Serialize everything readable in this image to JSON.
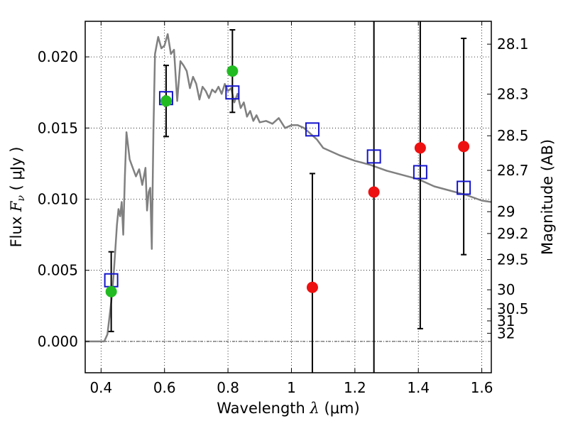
{
  "chart_data": {
    "type": "scatter",
    "xlabel": {
      "prefix": "Wavelength  ",
      "symbol": "λ",
      "unit": " (μm)"
    },
    "ylabel": {
      "prefix": "Flux  ",
      "symbol": "F",
      "subscript": "ν",
      "unit": "  ( μJy )"
    },
    "y2label": "Magnitude (AB)",
    "xlim": [
      0.35,
      1.63
    ],
    "ylim": [
      -0.0022,
      0.0225
    ],
    "x_ticks": [
      {
        "value": 0.4,
        "label": "0.4"
      },
      {
        "value": 0.6,
        "label": "0.6"
      },
      {
        "value": 0.8,
        "label": "0.8"
      },
      {
        "value": 1.0,
        "label": "1"
      },
      {
        "value": 1.2,
        "label": "1.2"
      },
      {
        "value": 1.4,
        "label": "1.4"
      },
      {
        "value": 1.6,
        "label": "1.6"
      }
    ],
    "y_ticks": [
      {
        "value": 0.0,
        "label": "0.000"
      },
      {
        "value": 0.005,
        "label": "0.005"
      },
      {
        "value": 0.01,
        "label": "0.010"
      },
      {
        "value": 0.015,
        "label": "0.015"
      },
      {
        "value": 0.02,
        "label": "0.020"
      }
    ],
    "y2_ticks": [
      {
        "mag": 28.1,
        "label": "28.1"
      },
      {
        "mag": 28.3,
        "label": "28.3"
      },
      {
        "mag": 28.5,
        "label": "28.5"
      },
      {
        "mag": 28.7,
        "label": "28.7"
      },
      {
        "mag": 29.0,
        "label": "29"
      },
      {
        "mag": 29.2,
        "label": "29.2"
      },
      {
        "mag": 29.5,
        "label": "29.5"
      },
      {
        "mag": 30.0,
        "label": "30"
      },
      {
        "mag": 30.5,
        "label": "30.5"
      },
      {
        "mag": 31.0,
        "label": "31"
      },
      {
        "mag": 32.0,
        "label": "32"
      }
    ],
    "grid": true,
    "colors": {
      "model": "#808080",
      "detection": "#22bb22",
      "nondetection": "#ee1111",
      "model_flux": "#1515cc",
      "errorbar": "#000000"
    },
    "model_sed": {
      "x": [
        0.35,
        0.41,
        0.42,
        0.43,
        0.435,
        0.44,
        0.445,
        0.45,
        0.455,
        0.46,
        0.465,
        0.47,
        0.475,
        0.48,
        0.485,
        0.49,
        0.5,
        0.51,
        0.52,
        0.53,
        0.54,
        0.545,
        0.55,
        0.555,
        0.56,
        0.565,
        0.57,
        0.58,
        0.59,
        0.6,
        0.61,
        0.62,
        0.63,
        0.64,
        0.65,
        0.66,
        0.67,
        0.68,
        0.69,
        0.7,
        0.71,
        0.72,
        0.73,
        0.74,
        0.75,
        0.76,
        0.77,
        0.78,
        0.79,
        0.8,
        0.81,
        0.82,
        0.83,
        0.84,
        0.85,
        0.86,
        0.87,
        0.88,
        0.89,
        0.9,
        0.92,
        0.94,
        0.96,
        0.98,
        1.0,
        1.02,
        1.04,
        1.06,
        1.08,
        1.1,
        1.15,
        1.2,
        1.25,
        1.3,
        1.35,
        1.4,
        1.45,
        1.5,
        1.55,
        1.6,
        1.63
      ],
      "y": [
        0.0,
        0.0,
        0.0005,
        0.0024,
        0.0034,
        0.0048,
        0.0065,
        0.0082,
        0.0093,
        0.0088,
        0.0098,
        0.0075,
        0.0116,
        0.0147,
        0.0138,
        0.0128,
        0.0122,
        0.0116,
        0.0121,
        0.011,
        0.0122,
        0.0092,
        0.0105,
        0.0108,
        0.0065,
        0.0148,
        0.0202,
        0.0214,
        0.0206,
        0.0208,
        0.0216,
        0.0202,
        0.0205,
        0.0169,
        0.0197,
        0.0194,
        0.019,
        0.0178,
        0.0186,
        0.0181,
        0.017,
        0.0179,
        0.0176,
        0.0171,
        0.0177,
        0.0175,
        0.0179,
        0.0174,
        0.0181,
        0.0176,
        0.0178,
        0.0168,
        0.0174,
        0.0164,
        0.0168,
        0.0158,
        0.0162,
        0.0155,
        0.0159,
        0.0154,
        0.0155,
        0.0153,
        0.0157,
        0.015,
        0.0152,
        0.0152,
        0.015,
        0.0146,
        0.0142,
        0.0136,
        0.0131,
        0.0127,
        0.0124,
        0.012,
        0.0117,
        0.0114,
        0.0109,
        0.0106,
        0.0103,
        0.0099,
        0.0098
      ]
    },
    "detections": [
      {
        "x": 0.432,
        "y": 0.0035,
        "err": 0.0028
      },
      {
        "x": 0.605,
        "y": 0.0169,
        "err": 0.0025
      },
      {
        "x": 0.814,
        "y": 0.019,
        "err": 0.0029
      }
    ],
    "nondetections": [
      {
        "x": 1.066,
        "y": 0.0038,
        "err": 0.008
      },
      {
        "x": 1.26,
        "y": 0.0105,
        "err": 0.025
      },
      {
        "x": 1.406,
        "y": 0.0136,
        "err": 0.0127
      },
      {
        "x": 1.543,
        "y": 0.0137,
        "err": 0.0076
      }
    ],
    "model_fluxes": [
      {
        "x": 0.432,
        "y": 0.0043
      },
      {
        "x": 0.605,
        "y": 0.0171
      },
      {
        "x": 0.814,
        "y": 0.0175
      },
      {
        "x": 1.066,
        "y": 0.0149
      },
      {
        "x": 1.26,
        "y": 0.013
      },
      {
        "x": 1.406,
        "y": 0.0119
      },
      {
        "x": 1.543,
        "y": 0.0108
      }
    ]
  }
}
